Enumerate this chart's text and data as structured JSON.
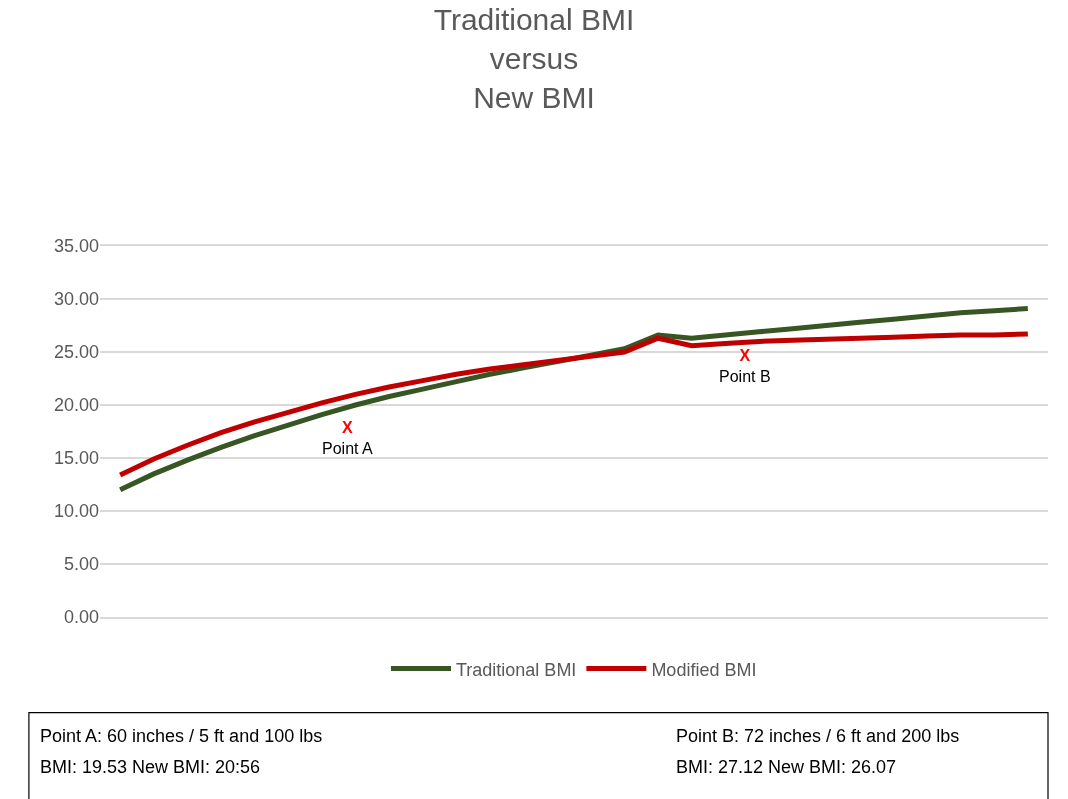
{
  "chart_data": {
    "type": "line",
    "title": "Traditional BMI\nversus\nNew BMI",
    "categories": [
      null,
      null,
      null,
      null,
      null,
      null,
      null,
      null,
      null,
      null,
      null,
      null,
      null,
      null,
      null,
      null,
      null,
      null,
      null,
      null,
      null,
      null,
      null,
      null,
      null,
      null,
      null,
      null
    ],
    "ylim": [
      0,
      35
    ],
    "yticks": [
      {
        "value": 0,
        "label": "0.00"
      },
      {
        "value": 5,
        "label": "5.00"
      },
      {
        "value": 10,
        "label": "10.00"
      },
      {
        "value": 15,
        "label": "15.00"
      },
      {
        "value": 20,
        "label": "20.00"
      },
      {
        "value": 25,
        "label": "25.00"
      },
      {
        "value": 30,
        "label": "30.00"
      },
      {
        "value": 35,
        "label": "35.00"
      }
    ],
    "tick_labels": "y",
    "grid": "y",
    "legend": "bottom",
    "line_style": "solid",
    "marker": "none",
    "series": [
      {
        "name": "Traditional BMI",
        "color": "#375623",
        "values": [
          12.0,
          13.5,
          14.8,
          16.0,
          17.1,
          18.1,
          19.1,
          20.0,
          20.8,
          21.5,
          22.2,
          22.9,
          23.5,
          24.1,
          24.7,
          25.3,
          26.6,
          26.3,
          26.6,
          26.9,
          27.2,
          27.5,
          27.8,
          28.1,
          28.4,
          28.7,
          28.9,
          29.1
        ]
      },
      {
        "name": "Modified BMI",
        "color": "#c00000",
        "values": [
          13.4,
          14.9,
          16.2,
          17.4,
          18.4,
          19.3,
          20.2,
          21.0,
          21.7,
          22.3,
          22.9,
          23.4,
          23.8,
          24.2,
          24.6,
          25.0,
          26.3,
          25.6,
          25.8,
          26.0,
          26.1,
          26.2,
          26.3,
          26.4,
          26.5,
          26.6,
          26.6,
          26.7
        ]
      }
    ],
    "annotations": [
      "X\nPoint A",
      "X\nPoint B",
      "Point A: 60 inches / 5 ft and 100 lbs",
      "BMI: 19.53 New BMI: 20:56",
      "Point B: 72 inches / 6 ft and 200 lbs",
      "BMI: 27.12 New BMI: 26.07"
    ]
  }
}
